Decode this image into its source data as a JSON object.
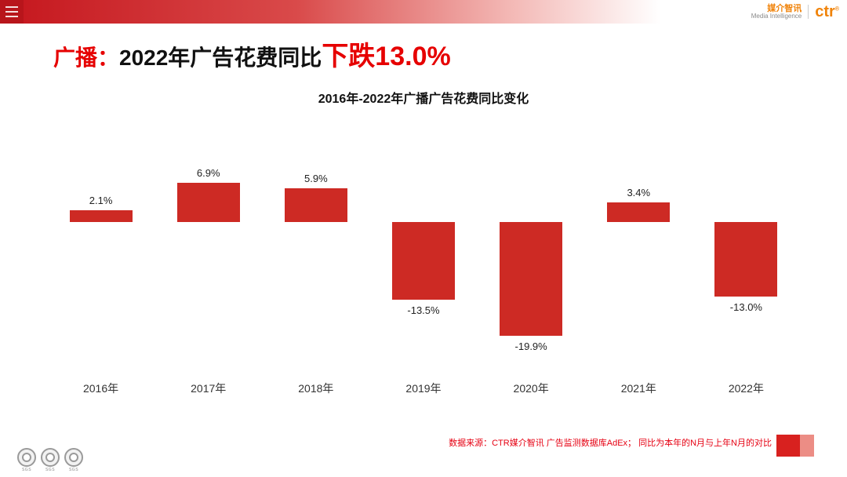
{
  "topbar": {
    "brand_cn": "媒介智讯",
    "brand_en": "Media Intelligence",
    "logo": "ctr",
    "logo_reg": "®"
  },
  "title": {
    "prefix": "广播：",
    "middle": "2022年广告花费同比",
    "highlight": "下跌13.0%"
  },
  "chart_data": {
    "type": "bar",
    "title": "2016年-2022年广播广告花费同比变化",
    "categories": [
      "2016年",
      "2017年",
      "2018年",
      "2019年",
      "2020年",
      "2021年",
      "2022年"
    ],
    "values": [
      2.1,
      6.9,
      5.9,
      -13.5,
      -19.9,
      3.4,
      -13.0
    ],
    "labels": [
      "2.1%",
      "6.9%",
      "5.9%",
      "-13.5%",
      "-19.9%",
      "3.4%",
      "-13.0%"
    ],
    "bar_color": "#cd2a24",
    "ylabel": "",
    "xlabel": "",
    "ylim": [
      -22,
      10
    ],
    "grid": false,
    "legend": "none"
  },
  "footer": {
    "source": "数据来源：CTR媒介智讯 广告监测数据库AdEx；  同比为本年的N月与上年N月的对比",
    "sgs_label": "SGS"
  },
  "colors": {
    "accent_red": "#e60000",
    "bar_red": "#cd2a24",
    "brand_orange": "#f0830a"
  }
}
